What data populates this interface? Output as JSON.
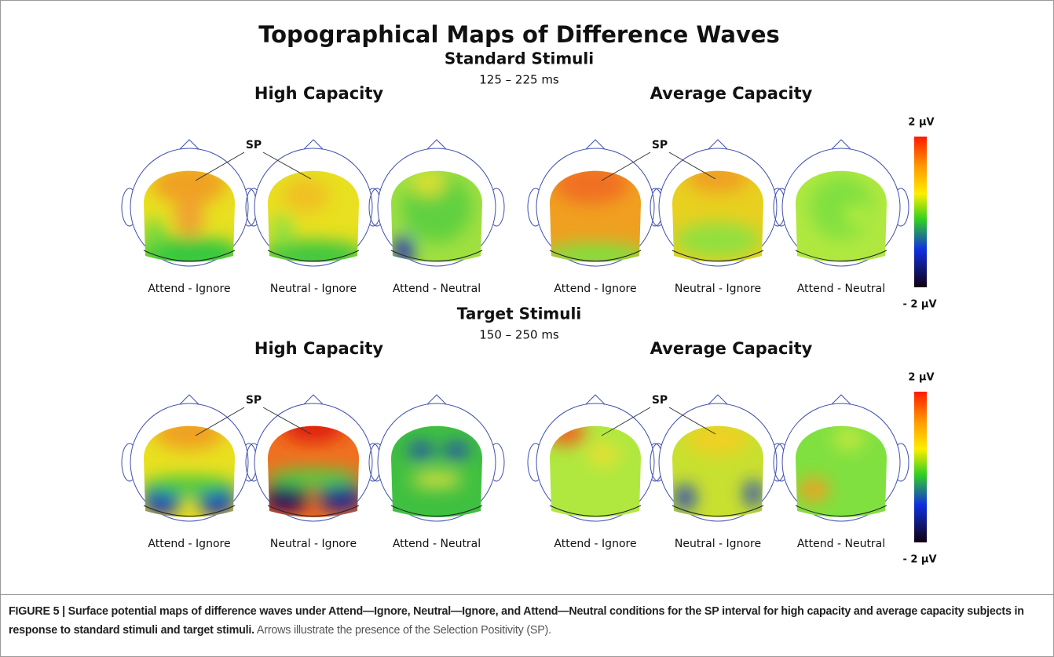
{
  "title": "Topographical Maps of Difference Waves",
  "sections": [
    {
      "title": "Standard Stimuli",
      "interval": "125 – 225 ms",
      "groups": [
        {
          "title": "High Capacity",
          "annotation": "SP",
          "maps": [
            "Attend - Ignore",
            "Neutral - Ignore",
            "Attend - Neutral"
          ]
        },
        {
          "title": "Average Capacity",
          "annotation": "SP",
          "maps": [
            "Attend - Ignore",
            "Neutral - Ignore",
            "Attend - Neutral"
          ]
        }
      ],
      "colorbar": {
        "max": "2 µV",
        "min": "- 2 µV"
      }
    },
    {
      "title": "Target Stimuli",
      "interval": "150 – 250 ms",
      "groups": [
        {
          "title": "High Capacity",
          "annotation": "SP",
          "maps": [
            "Attend - Ignore",
            "Neutral - Ignore",
            "Attend - Neutral"
          ]
        },
        {
          "title": "Average Capacity",
          "annotation": "SP",
          "maps": [
            "Attend - Ignore",
            "Neutral - Ignore",
            "Attend - Neutral"
          ]
        }
      ],
      "colorbar": {
        "max": "2 µV",
        "min": "- 2 µV"
      }
    }
  ],
  "caption": {
    "label": "FIGURE 5 | Surface potential maps of difference waves under Attend—Ignore, Neutral—Ignore, and Attend—Neutral conditions for the SP interval for high capacity and average capacity subjects in response to standard stimuli and target stimuli.",
    "text": "Arrows illustrate the presence of the Selection Positivity (SP)."
  }
}
